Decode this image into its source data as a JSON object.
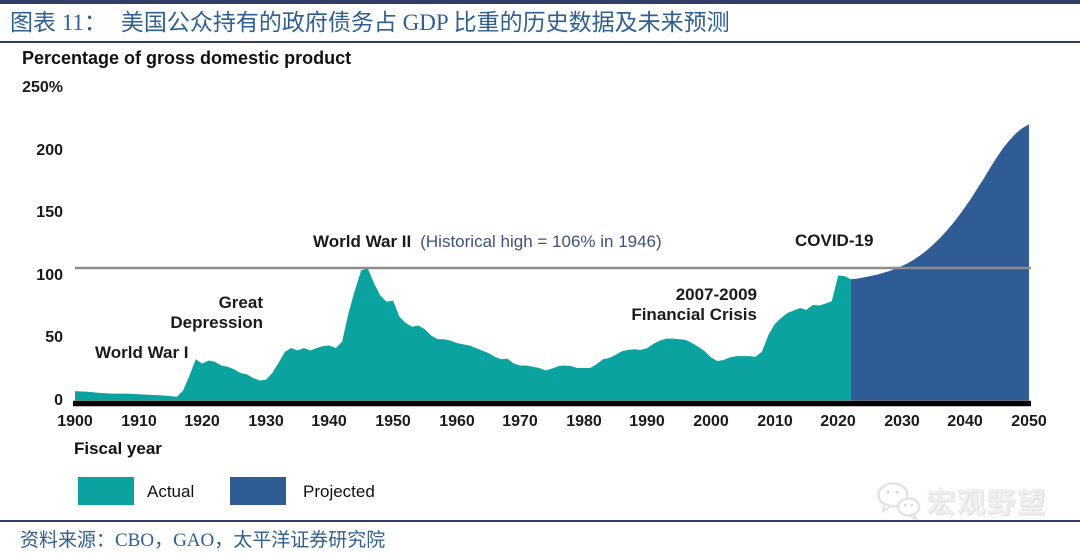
{
  "header": {
    "tag": "图表 11：",
    "title": "美国公众持有的政府债务占 GDP 比重的历史数据及未来预测"
  },
  "source": "资料来源：CBO，GAO，太平洋证券研究院",
  "watermark": "宏观野望",
  "colors": {
    "actual": "#0aa3a0",
    "projected": "#2f5c95",
    "reference_line": "#8c8c8c",
    "rule_navy": "#323d66",
    "title_text": "#2f5e90"
  },
  "chart_data": {
    "type": "area",
    "title": "Percentage of gross domestic product",
    "xlabel": "Fiscal year",
    "ylabel": "Percentage of gross domestic product",
    "x_range": [
      1900,
      2050
    ],
    "y_range": [
      0,
      250
    ],
    "grid": false,
    "legend_position": "bottom-left",
    "y_axis": {
      "ticks": [
        {
          "label": "250%",
          "value": 250
        },
        {
          "label": "200",
          "value": 200
        },
        {
          "label": "150",
          "value": 150
        },
        {
          "label": "100",
          "value": 100
        },
        {
          "label": "50",
          "value": 50
        },
        {
          "label": "0",
          "value": 0
        }
      ]
    },
    "x_axis": {
      "ticks": [
        1900,
        1910,
        1920,
        1930,
        1940,
        1950,
        1960,
        1970,
        1980,
        1990,
        2000,
        2010,
        2020,
        2030,
        2040,
        2050
      ]
    },
    "reference_line": {
      "value": 106,
      "label": "Historical high = 106% in 1946"
    },
    "legend": {
      "actual": "Actual",
      "projected": "Projected"
    },
    "annotations": {
      "world_war_1": "World War I",
      "great_depression": "Great\nDepression",
      "world_war_2": "World War II",
      "world_war_2_note": "(Historical high = 106% in 1946)",
      "financial_crisis": "2007-2009\nFinancial Crisis",
      "covid": "COVID-19"
    },
    "series": [
      {
        "name": "Actual",
        "color": "#0aa3a0",
        "points": [
          [
            1900,
            7.5
          ],
          [
            1902,
            7
          ],
          [
            1904,
            6
          ],
          [
            1906,
            5.5
          ],
          [
            1908,
            5.5
          ],
          [
            1910,
            5
          ],
          [
            1912,
            4.5
          ],
          [
            1914,
            4
          ],
          [
            1916,
            3
          ],
          [
            1917,
            8
          ],
          [
            1918,
            20
          ],
          [
            1919,
            33
          ],
          [
            1920,
            29.5
          ],
          [
            1921,
            32
          ],
          [
            1922,
            31
          ],
          [
            1923,
            28
          ],
          [
            1924,
            27
          ],
          [
            1925,
            25
          ],
          [
            1926,
            22
          ],
          [
            1927,
            21
          ],
          [
            1928,
            18
          ],
          [
            1929,
            16
          ],
          [
            1930,
            16.5
          ],
          [
            1931,
            22
          ],
          [
            1932,
            30
          ],
          [
            1933,
            39
          ],
          [
            1934,
            42
          ],
          [
            1935,
            40
          ],
          [
            1936,
            42
          ],
          [
            1937,
            40
          ],
          [
            1938,
            42
          ],
          [
            1939,
            43.5
          ],
          [
            1940,
            44
          ],
          [
            1941,
            42
          ],
          [
            1942,
            47
          ],
          [
            1943,
            70
          ],
          [
            1944,
            88
          ],
          [
            1945,
            104
          ],
          [
            1946,
            106
          ],
          [
            1947,
            94
          ],
          [
            1948,
            84
          ],
          [
            1949,
            79
          ],
          [
            1950,
            80
          ],
          [
            1951,
            67
          ],
          [
            1952,
            62
          ],
          [
            1953,
            59
          ],
          [
            1954,
            60
          ],
          [
            1955,
            57
          ],
          [
            1956,
            52
          ],
          [
            1957,
            49
          ],
          [
            1958,
            49
          ],
          [
            1959,
            48
          ],
          [
            1960,
            46
          ],
          [
            1961,
            45
          ],
          [
            1962,
            44
          ],
          [
            1963,
            42
          ],
          [
            1964,
            40
          ],
          [
            1965,
            38
          ],
          [
            1966,
            35
          ],
          [
            1967,
            33
          ],
          [
            1968,
            33.5
          ],
          [
            1969,
            29.5
          ],
          [
            1970,
            28
          ],
          [
            1971,
            28
          ],
          [
            1972,
            27
          ],
          [
            1973,
            26
          ],
          [
            1974,
            24
          ],
          [
            1975,
            25.5
          ],
          [
            1976,
            27.5
          ],
          [
            1977,
            28
          ],
          [
            1978,
            27.5
          ],
          [
            1979,
            26
          ],
          [
            1980,
            26
          ],
          [
            1981,
            26
          ],
          [
            1982,
            29
          ],
          [
            1983,
            33
          ],
          [
            1984,
            34
          ],
          [
            1985,
            36.5
          ],
          [
            1986,
            39.5
          ],
          [
            1987,
            40.5
          ],
          [
            1988,
            41
          ],
          [
            1989,
            40.5
          ],
          [
            1990,
            42
          ],
          [
            1991,
            45.5
          ],
          [
            1992,
            48
          ],
          [
            1993,
            49.5
          ],
          [
            1994,
            49.5
          ],
          [
            1995,
            49
          ],
          [
            1996,
            48.5
          ],
          [
            1997,
            46
          ],
          [
            1998,
            43
          ],
          [
            1999,
            39.5
          ],
          [
            2000,
            34.5
          ],
          [
            2001,
            31.5
          ],
          [
            2002,
            32.5
          ],
          [
            2003,
            34.5
          ],
          [
            2004,
            35.5
          ],
          [
            2005,
            35.5
          ],
          [
            2006,
            35.5
          ],
          [
            2007,
            35
          ],
          [
            2008,
            39
          ],
          [
            2009,
            52
          ],
          [
            2010,
            61
          ],
          [
            2011,
            66
          ],
          [
            2012,
            70
          ],
          [
            2013,
            72
          ],
          [
            2014,
            74
          ],
          [
            2015,
            72.5
          ],
          [
            2016,
            76.5
          ],
          [
            2017,
            76
          ],
          [
            2018,
            77.5
          ],
          [
            2019,
            79.5
          ],
          [
            2020,
            100
          ],
          [
            2021,
            99.5
          ],
          [
            2022,
            97
          ]
        ]
      },
      {
        "name": "Projected",
        "color": "#2f5c95",
        "points": [
          [
            2022,
            97
          ],
          [
            2023,
            97.5
          ],
          [
            2024,
            98.5
          ],
          [
            2025,
            99.5
          ],
          [
            2026,
            100.5
          ],
          [
            2027,
            102
          ],
          [
            2028,
            103.5
          ],
          [
            2029,
            105.5
          ],
          [
            2030,
            107.5
          ],
          [
            2031,
            110
          ],
          [
            2032,
            113
          ],
          [
            2033,
            116.5
          ],
          [
            2034,
            120.5
          ],
          [
            2035,
            125
          ],
          [
            2036,
            130
          ],
          [
            2037,
            135.5
          ],
          [
            2038,
            141.5
          ],
          [
            2039,
            148
          ],
          [
            2040,
            155
          ],
          [
            2041,
            162.5
          ],
          [
            2042,
            170.5
          ],
          [
            2043,
            178.5
          ],
          [
            2044,
            187
          ],
          [
            2045,
            195
          ],
          [
            2046,
            202.5
          ],
          [
            2047,
            208.5
          ],
          [
            2048,
            214
          ],
          [
            2049,
            218
          ],
          [
            2050,
            221
          ]
        ]
      }
    ]
  }
}
